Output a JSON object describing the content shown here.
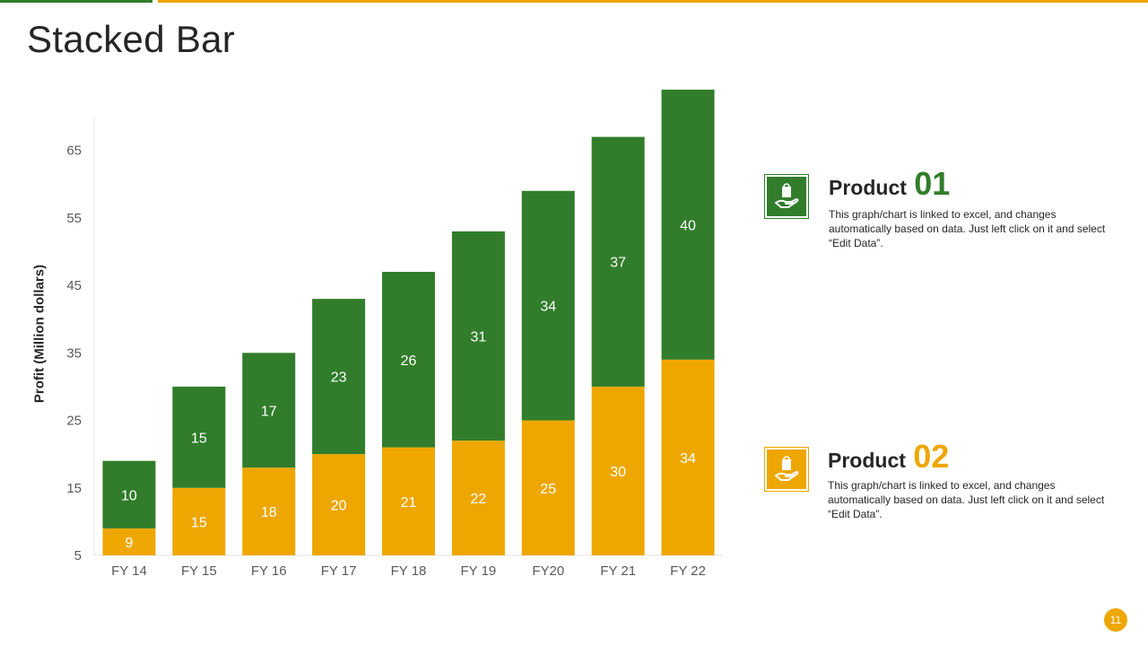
{
  "slide": {
    "title": "Stacked Bar",
    "page_number": "11"
  },
  "colors": {
    "green": "#317D2B",
    "gold": "#EEA700",
    "text": "#262626"
  },
  "legend": [
    {
      "label": "Product",
      "number": "01",
      "color": "#317D2B",
      "icon": "hand-holding-bag-icon",
      "description": "This graph/chart is linked to excel, and changes automatically based on data. Just left click on it and select “Edit Data”."
    },
    {
      "label": "Product",
      "number": "02",
      "color": "#EEA700",
      "icon": "hand-holding-bag-icon",
      "description": "This graph/chart is linked to excel, and changes automatically based on data. Just left click on it and select “Edit Data”."
    }
  ],
  "chart_data": {
    "type": "bar",
    "stacked": true,
    "categories": [
      "FY 14",
      "FY 15",
      "FY 16",
      "FY 17",
      "FY 18",
      "FY 19",
      "FY20",
      "FY 21",
      "FY 22"
    ],
    "series": [
      {
        "name": "Product 02",
        "color": "#EEA700",
        "values": [
          9,
          15,
          18,
          20,
          21,
          22,
          25,
          30,
          34
        ]
      },
      {
        "name": "Product 01",
        "color": "#317D2B",
        "values": [
          10,
          15,
          17,
          23,
          26,
          31,
          34,
          37,
          40
        ]
      }
    ],
    "ylabel": "Profit  (Million dollars)",
    "ylim": [
      5,
      70
    ],
    "yticks": [
      5,
      15,
      25,
      35,
      45,
      55,
      65
    ],
    "grid": false,
    "data_labels": true
  }
}
